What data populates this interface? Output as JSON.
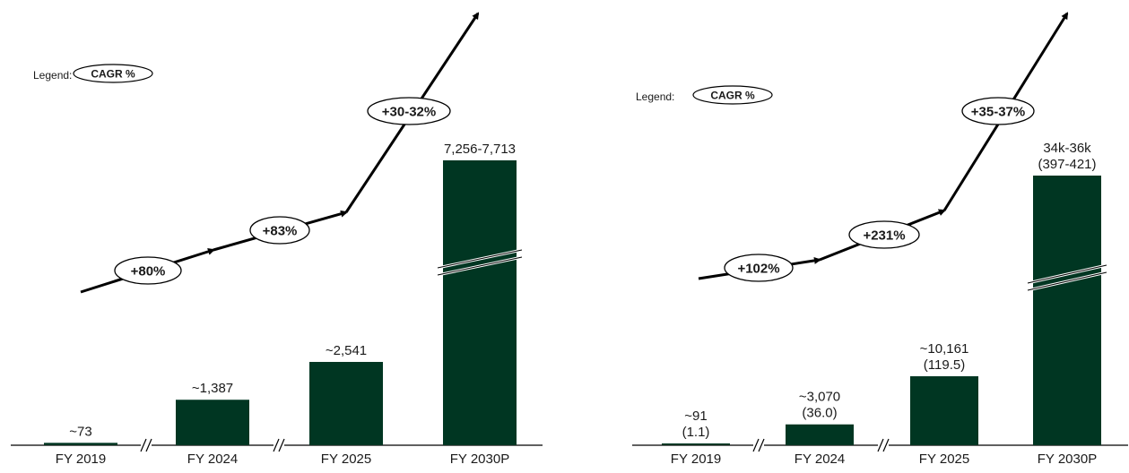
{
  "legend": {
    "label": "Legend:",
    "pill": "CAGR %"
  },
  "chart_data": [
    {
      "type": "bar",
      "categories": [
        "FY 2019",
        "FY 2024",
        "FY 2025",
        "FY 2030P"
      ],
      "values": [
        73,
        1387,
        2541,
        7485
      ],
      "value_labels": [
        [
          "~73"
        ],
        [
          "~1,387"
        ],
        [
          "~2,541"
        ],
        [
          "7,256-7,713"
        ]
      ],
      "axis_breaks_between": [
        [
          0,
          1
        ],
        [
          1,
          2
        ]
      ],
      "broken_bar_index": 3,
      "bar_color": "#003622",
      "cagr_labels": [
        "+80%",
        "+83%",
        "+30-32%"
      ],
      "grid": false,
      "legend_position": "top-left"
    },
    {
      "type": "bar",
      "categories": [
        "FY 2019",
        "FY 2024",
        "FY 2025",
        "FY 2030P"
      ],
      "values": [
        91,
        3070,
        10161,
        35000
      ],
      "secondary_values": [
        1.1,
        36.0,
        119.5,
        409
      ],
      "value_labels": [
        [
          "~91",
          "(1.1)"
        ],
        [
          "~3,070",
          "(36.0)"
        ],
        [
          "~10,161",
          "(119.5)"
        ],
        [
          "34k-36k",
          "(397-421)"
        ]
      ],
      "axis_breaks_between": [
        [
          0,
          1
        ],
        [
          1,
          2
        ]
      ],
      "broken_bar_index": 3,
      "bar_color": "#003622",
      "cagr_labels": [
        "+102%",
        "+231%",
        "+35-37%"
      ],
      "grid": false,
      "legend_position": "top-left"
    }
  ]
}
